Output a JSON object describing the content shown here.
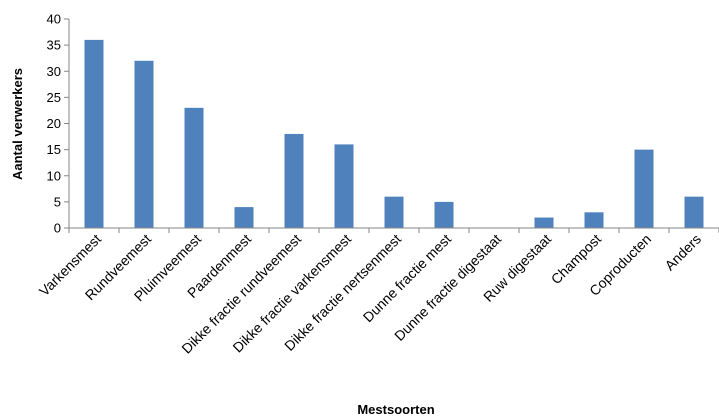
{
  "chart_data": {
    "type": "bar",
    "categories": [
      "Varkensmest",
      "Rundveemest",
      "Pluimveemest",
      "Paardenmest",
      "Dikke fractie rundveemest",
      "Dikke fractie varkensmest",
      "Dikke fractie nertsenmest",
      "Dunne fractie mest",
      "Dunne fractie digestaat",
      "Ruw digestaat",
      "Champost",
      "Coproducten",
      "Anders"
    ],
    "values": [
      36,
      32,
      23,
      4,
      18,
      16,
      6,
      5,
      0,
      2,
      3,
      15,
      6
    ],
    "title": "",
    "xlabel": "Mestsoorten",
    "ylabel": "Aantal verwerkers",
    "ylim": [
      0,
      40
    ],
    "yticks": [
      0,
      5,
      10,
      15,
      20,
      25,
      30,
      35,
      40
    ],
    "grid": false,
    "legend": "none",
    "bar_color": "#4F81BD",
    "axis_color": "#868686"
  }
}
